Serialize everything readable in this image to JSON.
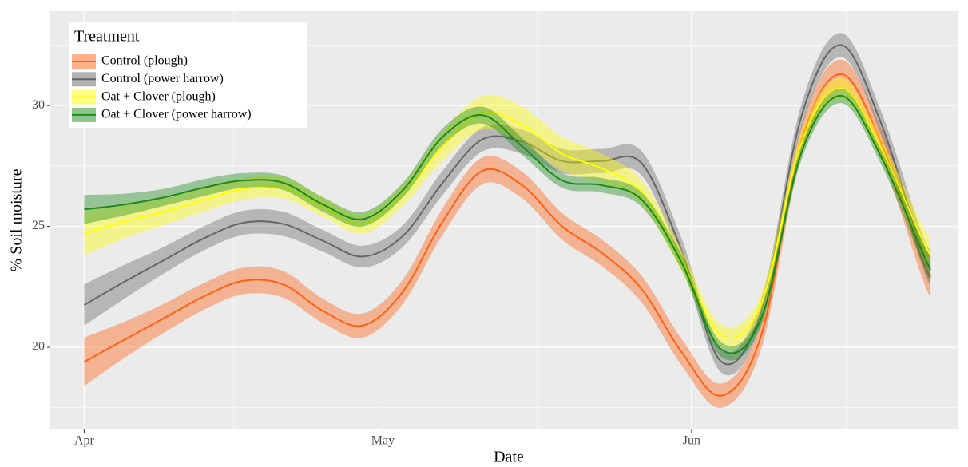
{
  "chart_data": {
    "type": "line",
    "x_label": "Date",
    "y_label": "% Soil moisture",
    "legend_title": "Treatment",
    "legend": "top-left",
    "grid": true,
    "x": [
      0,
      4,
      8,
      12,
      16,
      20,
      24,
      28,
      32,
      36,
      40,
      44,
      48,
      52,
      56,
      60,
      64,
      68,
      72,
      76,
      80,
      84,
      85
    ],
    "xlim": [
      -3.4,
      87.8
    ],
    "xticks": [
      {
        "value": 0,
        "label": "Apr"
      },
      {
        "value": 30,
        "label": "May"
      },
      {
        "value": 61,
        "label": "Jun"
      }
    ],
    "ylim": [
      16.6,
      33.9
    ],
    "yticks": [
      20,
      25,
      30
    ],
    "series": [
      {
        "name": "Control (plough)",
        "color": "#ff6010",
        "values": [
          19.4,
          20.3,
          21.2,
          22.1,
          22.75,
          22.6,
          21.5,
          20.9,
          22.3,
          25.2,
          27.3,
          26.7,
          25.0,
          23.9,
          22.4,
          19.8,
          18.0,
          20.5,
          28.5,
          31.3,
          28.5,
          23.8,
          22.9
        ],
        "errors": [
          1.0,
          0.75,
          0.6,
          0.55,
          0.55,
          0.55,
          0.5,
          0.5,
          0.5,
          0.55,
          0.55,
          0.55,
          0.55,
          0.55,
          0.55,
          0.55,
          0.5,
          0.55,
          0.6,
          0.6,
          0.6,
          0.75,
          0.85
        ]
      },
      {
        "name": "Control (power harrow)",
        "color": "#666666",
        "values": [
          21.75,
          22.7,
          23.6,
          24.5,
          25.15,
          25.1,
          24.4,
          23.75,
          24.6,
          26.8,
          28.6,
          28.5,
          27.7,
          27.7,
          27.6,
          24.0,
          19.4,
          21.5,
          29.5,
          32.5,
          29.3,
          24.2,
          23.3
        ],
        "errors": [
          0.85,
          0.7,
          0.55,
          0.5,
          0.5,
          0.5,
          0.45,
          0.45,
          0.45,
          0.5,
          0.5,
          0.5,
          0.5,
          0.5,
          0.5,
          0.5,
          0.45,
          0.5,
          0.5,
          0.5,
          0.5,
          0.65,
          0.75
        ]
      },
      {
        "name": "Oat + Clover (plough)",
        "color": "#ffff00",
        "values": [
          24.7,
          25.2,
          25.6,
          26.1,
          26.55,
          26.6,
          25.8,
          25.1,
          26.3,
          28.3,
          29.7,
          29.2,
          28.0,
          27.4,
          26.4,
          23.6,
          20.5,
          21.8,
          28.4,
          30.7,
          28.2,
          24.6,
          23.8
        ],
        "errors": [
          0.9,
          0.7,
          0.55,
          0.5,
          0.45,
          0.45,
          0.4,
          0.4,
          0.45,
          0.6,
          0.7,
          0.75,
          0.7,
          0.6,
          0.5,
          0.45,
          0.45,
          0.45,
          0.45,
          0.45,
          0.45,
          0.6,
          0.7
        ]
      },
      {
        "name": "Oat + Clover (power harrow)",
        "color": "#1a8a1a",
        "values": [
          25.7,
          25.9,
          26.2,
          26.6,
          26.9,
          26.8,
          25.9,
          25.3,
          26.5,
          28.7,
          29.6,
          28.3,
          26.9,
          26.7,
          26.1,
          23.5,
          19.9,
          21.2,
          28.0,
          30.4,
          27.9,
          24.1,
          23.2
        ],
        "errors": [
          0.6,
          0.45,
          0.35,
          0.35,
          0.3,
          0.3,
          0.3,
          0.3,
          0.3,
          0.35,
          0.35,
          0.35,
          0.3,
          0.3,
          0.3,
          0.3,
          0.3,
          0.3,
          0.3,
          0.3,
          0.3,
          0.45,
          0.55
        ]
      }
    ]
  }
}
